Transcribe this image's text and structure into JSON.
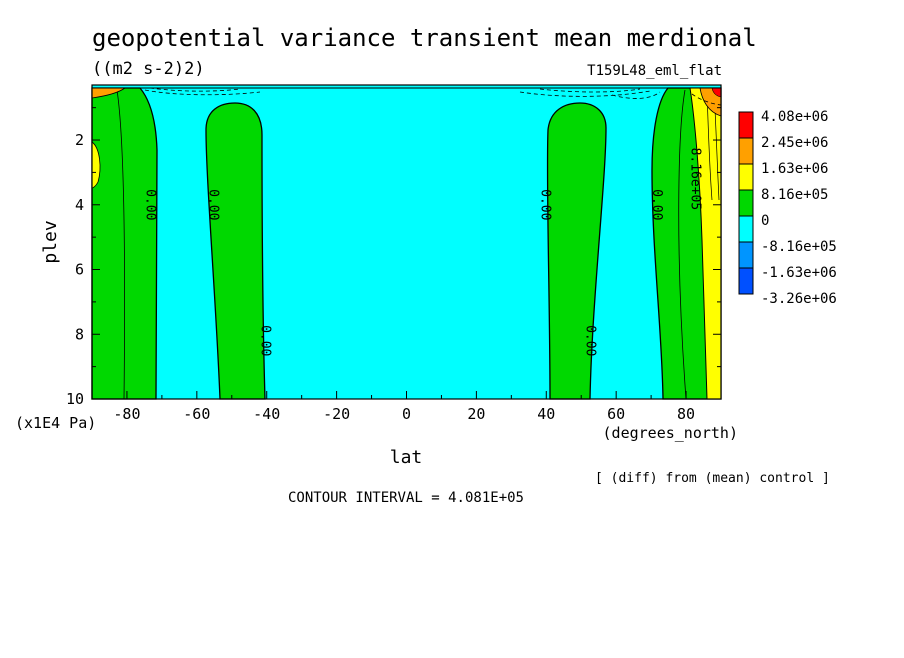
{
  "header": {
    "title": "geopotential variance transient mean merdional",
    "units": "((m2 s-2)2)",
    "experiment": "T159L48_eml_flat"
  },
  "footer": {
    "diff_note": "[ (diff) from (mean) control ]",
    "contour_interval": "CONTOUR INTERVAL = 4.081E+05"
  },
  "colors": {
    "red": "#ff0000",
    "orange": "#ffa000",
    "yellow": "#ffff00",
    "green": "#00d800",
    "cyan": "#00ffff",
    "sky": "#0095ff",
    "blue": "#0050ff"
  },
  "chart_data": {
    "type": "contour",
    "xlabel": "lat",
    "ylabel": "plev",
    "x_units": "(degrees_north)",
    "y_units": "(x1E4 Pa)",
    "xlim": [
      -90,
      90
    ],
    "ylim": [
      0.3,
      10
    ],
    "x_ticks": [
      -80,
      -60,
      -40,
      -20,
      0,
      20,
      40,
      60,
      80
    ],
    "y_ticks": [
      2,
      4,
      6,
      8,
      10
    ],
    "grid": false,
    "legend": "right",
    "colorbar": {
      "levels": [
        "4.08e+06",
        "2.45e+06",
        "1.63e+06",
        "8.16e+05",
        "0",
        "-8.16e+05",
        "-1.63e+06",
        "-3.26e+06"
      ],
      "colors": [
        "#ff0000",
        "#ffa000",
        "#ffff00",
        "#00d800",
        "#00ffff",
        "#0095ff",
        "#0050ff"
      ]
    },
    "contour_labels": [
      {
        "text": "0.00",
        "lat": -73,
        "plev": 4
      },
      {
        "text": "0.00",
        "lat": -55,
        "plev": 4
      },
      {
        "text": "0.00",
        "lat": -40,
        "plev": 8.2
      },
      {
        "text": "0.00",
        "lat": 40,
        "plev": 4
      },
      {
        "text": "0.00",
        "lat": 53,
        "plev": 8.2
      },
      {
        "text": "0.00",
        "lat": 72,
        "plev": 4
      },
      {
        "text": "8.16e+05",
        "lat": 83,
        "plev": 3.2
      }
    ],
    "regions": [
      {
        "name": "sh-polar-positive",
        "value_range": [
          0,
          816000.0
        ],
        "lat_range": [
          -90,
          -71
        ],
        "plev_range": [
          0.3,
          10
        ]
      },
      {
        "name": "sh-midlat-positive",
        "value_range": [
          0,
          816000.0
        ],
        "lat_range": [
          -56,
          -40
        ],
        "plev_range": [
          0.8,
          10
        ]
      },
      {
        "name": "nh-midlat-positive",
        "value_range": [
          0,
          816000.0
        ],
        "lat_range": [
          40,
          57
        ],
        "plev_range": [
          0.8,
          10
        ]
      },
      {
        "name": "nh-polar-positive",
        "value_range": [
          0,
          816000.0
        ],
        "lat_range": [
          72,
          90
        ],
        "plev_range": [
          0.3,
          10
        ]
      },
      {
        "name": "nh-polar-high",
        "value_range": [
          816000.0,
          1630000.0
        ],
        "lat_range": [
          85,
          90
        ],
        "plev_range": [
          0.3,
          10
        ]
      },
      {
        "name": "background-negative",
        "value_range": [
          -816000.0,
          0
        ],
        "lat_range": [
          -90,
          90
        ],
        "plev_range": [
          0.3,
          10
        ]
      }
    ]
  }
}
